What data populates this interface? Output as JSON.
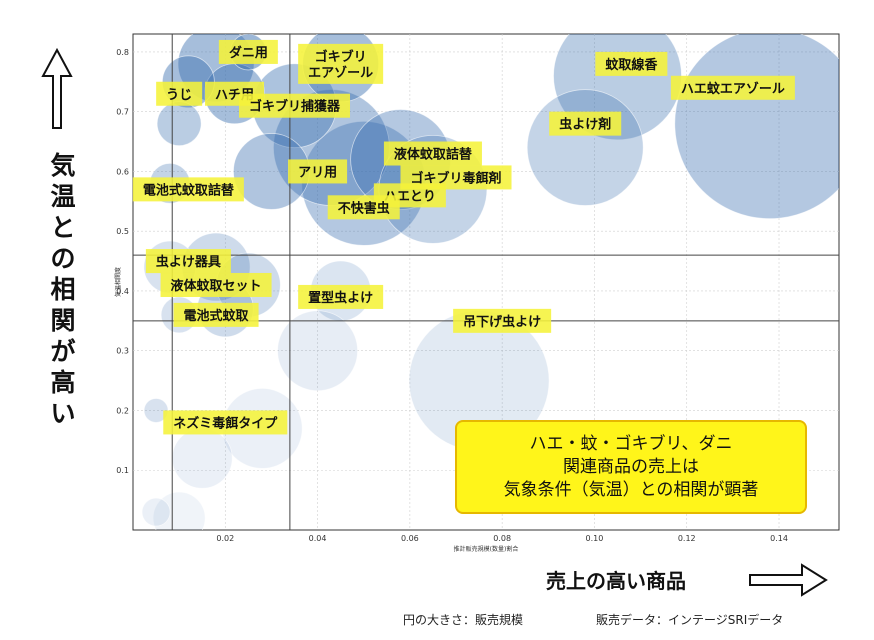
{
  "chart_data": {
    "type": "scatter",
    "xlabel": "推計販売規模(数量)割合",
    "ylabel": "気温相関度",
    "xlim": [
      0.0,
      0.153
    ],
    "ylim": [
      0.0,
      0.83
    ],
    "xticks": [
      "0.02",
      "0.04",
      "0.06",
      "0.08",
      "0.10",
      "0.12",
      "0.14"
    ],
    "xtick_values": [
      0.02,
      0.04,
      0.06,
      0.08,
      0.1,
      0.12,
      0.14
    ],
    "yticks": [
      "0.1",
      "0.2",
      "0.3",
      "0.4",
      "0.5",
      "0.6",
      "0.7",
      "0.8"
    ],
    "ytick_values": [
      0.1,
      0.2,
      0.3,
      0.4,
      0.5,
      0.6,
      0.7,
      0.8
    ],
    "ref_lines": {
      "x": [
        0.0085,
        0.034
      ],
      "y": [
        0.35,
        0.46
      ]
    },
    "labeled_points": [
      {
        "label": "ダニ用",
        "x": 0.025,
        "y": 0.8
      },
      {
        "label": "ゴキブリ\nエアゾール",
        "x": 0.045,
        "y": 0.78
      },
      {
        "label": "蚊取線香",
        "x": 0.108,
        "y": 0.78
      },
      {
        "label": "ハエ蚊エアゾール",
        "x": 0.13,
        "y": 0.74
      },
      {
        "label": "うじ",
        "x": 0.01,
        "y": 0.73
      },
      {
        "label": "ハチ用",
        "x": 0.022,
        "y": 0.73
      },
      {
        "label": "ゴキブリ捕獲器",
        "x": 0.035,
        "y": 0.71
      },
      {
        "label": "虫よけ剤",
        "x": 0.098,
        "y": 0.68
      },
      {
        "label": "液体蚊取詰替",
        "x": 0.065,
        "y": 0.63
      },
      {
        "label": "アリ用",
        "x": 0.04,
        "y": 0.6
      },
      {
        "label": "ゴキブリ毒餌剤",
        "x": 0.07,
        "y": 0.59
      },
      {
        "label": "電池式蚊取詰替",
        "x": 0.012,
        "y": 0.57
      },
      {
        "label": "ハエとり",
        "x": 0.06,
        "y": 0.56
      },
      {
        "label": "不快害虫",
        "x": 0.05,
        "y": 0.54
      },
      {
        "label": "虫よけ器具",
        "x": 0.012,
        "y": 0.45
      },
      {
        "label": "液体蚊取セット",
        "x": 0.018,
        "y": 0.41
      },
      {
        "label": "置型虫よけ",
        "x": 0.045,
        "y": 0.39
      },
      {
        "label": "電池式蚊取",
        "x": 0.018,
        "y": 0.36
      },
      {
        "label": "吊下げ虫よけ",
        "x": 0.08,
        "y": 0.35
      },
      {
        "label": "ネズミ毒餌タイプ",
        "x": 0.02,
        "y": 0.18
      }
    ],
    "bubbles": [
      {
        "x": 0.138,
        "y": 0.68,
        "size": 95,
        "opacity": 0.38
      },
      {
        "x": 0.105,
        "y": 0.76,
        "size": 64,
        "opacity": 0.35
      },
      {
        "x": 0.098,
        "y": 0.64,
        "size": 58,
        "opacity": 0.3
      },
      {
        "x": 0.05,
        "y": 0.58,
        "size": 62,
        "opacity": 0.38
      },
      {
        "x": 0.043,
        "y": 0.64,
        "size": 58,
        "opacity": 0.4
      },
      {
        "x": 0.058,
        "y": 0.62,
        "size": 50,
        "opacity": 0.38
      },
      {
        "x": 0.065,
        "y": 0.57,
        "size": 54,
        "opacity": 0.3
      },
      {
        "x": 0.035,
        "y": 0.71,
        "size": 42,
        "opacity": 0.42
      },
      {
        "x": 0.03,
        "y": 0.6,
        "size": 38,
        "opacity": 0.4
      },
      {
        "x": 0.045,
        "y": 0.78,
        "size": 38,
        "opacity": 0.45
      },
      {
        "x": 0.018,
        "y": 0.78,
        "size": 38,
        "opacity": 0.45
      },
      {
        "x": 0.022,
        "y": 0.73,
        "size": 30,
        "opacity": 0.45
      },
      {
        "x": 0.012,
        "y": 0.75,
        "size": 26,
        "opacity": 0.45
      },
      {
        "x": 0.01,
        "y": 0.68,
        "size": 22,
        "opacity": 0.35
      },
      {
        "x": 0.008,
        "y": 0.58,
        "size": 20,
        "opacity": 0.3
      },
      {
        "x": 0.025,
        "y": 0.8,
        "size": 18,
        "opacity": 0.5
      },
      {
        "x": 0.018,
        "y": 0.44,
        "size": 34,
        "opacity": 0.25
      },
      {
        "x": 0.025,
        "y": 0.41,
        "size": 32,
        "opacity": 0.25
      },
      {
        "x": 0.02,
        "y": 0.37,
        "size": 28,
        "opacity": 0.25
      },
      {
        "x": 0.008,
        "y": 0.44,
        "size": 26,
        "opacity": 0.2
      },
      {
        "x": 0.045,
        "y": 0.4,
        "size": 30,
        "opacity": 0.18
      },
      {
        "x": 0.01,
        "y": 0.36,
        "size": 18,
        "opacity": 0.2
      },
      {
        "x": 0.075,
        "y": 0.25,
        "size": 70,
        "opacity": 0.15
      },
      {
        "x": 0.04,
        "y": 0.3,
        "size": 40,
        "opacity": 0.12
      },
      {
        "x": 0.028,
        "y": 0.17,
        "size": 40,
        "opacity": 0.1
      },
      {
        "x": 0.015,
        "y": 0.12,
        "size": 30,
        "opacity": 0.1
      },
      {
        "x": 0.005,
        "y": 0.2,
        "size": 12,
        "opacity": 0.2
      },
      {
        "x": 0.01,
        "y": 0.02,
        "size": 26,
        "opacity": 0.08
      },
      {
        "x": 0.005,
        "y": 0.03,
        "size": 14,
        "opacity": 0.1
      }
    ]
  },
  "annotations": {
    "y_side_label": "気温との相関が高い",
    "x_side_label": "売上の高い商品",
    "callout_lines": [
      "ハエ・蚊・ゴキブリ、ダニ",
      "関連商品の売上は",
      "気象条件（気温）との相関が顕著"
    ],
    "footer_size": "円の大きさ：販売規模",
    "footer_source": "販売データ：インテージSRIデータ"
  },
  "colors": {
    "bubble": "#3a6fb0",
    "label_bg": "#f5f23a",
    "callout_bg": "#fff51a",
    "callout_border": "#e6b800"
  }
}
